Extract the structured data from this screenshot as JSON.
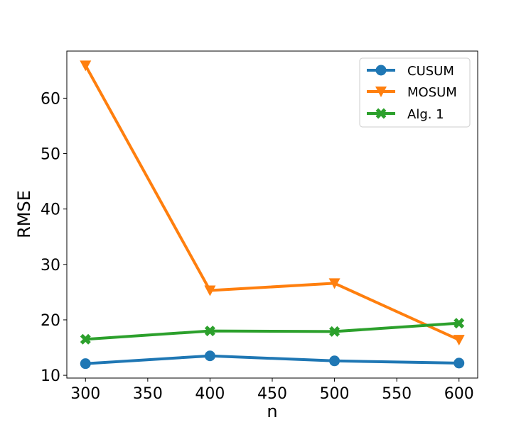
{
  "chart_data": {
    "type": "line",
    "x": [
      300,
      400,
      500,
      600
    ],
    "xlabel": "n",
    "ylabel": "RMSE",
    "xlim": [
      285,
      615
    ],
    "ylim": [
      9.5,
      68.5
    ],
    "xticks": [
      300,
      350,
      400,
      450,
      500,
      550,
      600
    ],
    "yticks": [
      10,
      20,
      30,
      40,
      50,
      60
    ],
    "grid": false,
    "legend_position": "top-right",
    "series": [
      {
        "name": "CUSUM",
        "values": [
          12.1,
          13.5,
          12.6,
          12.2
        ],
        "color": "#1f77b4",
        "marker": "circle"
      },
      {
        "name": "MOSUM",
        "values": [
          65.9,
          25.3,
          26.6,
          16.4
        ],
        "color": "#ff7f0e",
        "marker": "triangle-down"
      },
      {
        "name": "Alg. 1",
        "values": [
          16.5,
          18.0,
          17.9,
          19.4
        ],
        "color": "#2ca02c",
        "marker": "x-filled"
      }
    ]
  }
}
